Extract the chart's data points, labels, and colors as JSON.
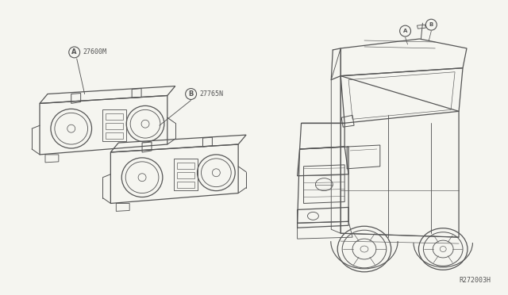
{
  "background_color": "#f5f5f0",
  "line_color": "#555555",
  "line_width": 0.9,
  "fig_width": 6.4,
  "fig_height": 3.72,
  "dpi": 100,
  "labels": {
    "A_text": "27600M",
    "B_text": "27765N",
    "ref": "R272003H"
  }
}
